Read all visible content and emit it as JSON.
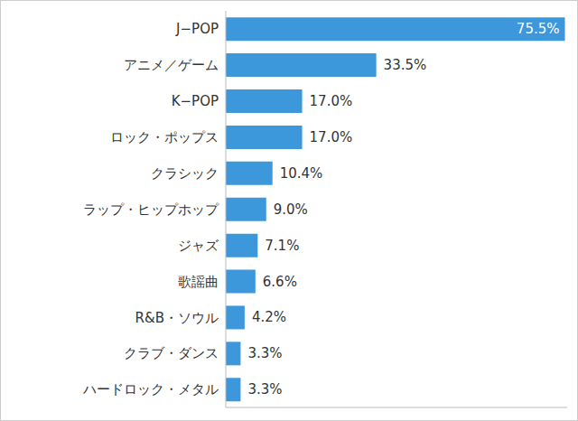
{
  "chart_data": {
    "type": "bar",
    "orientation": "horizontal",
    "categories": [
      "J−POP",
      "アニメ／ゲーム",
      "K−POP",
      "ロック・ポップス",
      "クラシック",
      "ラップ・ヒップホップ",
      "ジャズ",
      "歌謡曲",
      "R&B・ソウル",
      "クラブ・ダンス",
      "ハードロック・メタル"
    ],
    "values": [
      75.5,
      33.5,
      17.0,
      17.0,
      10.4,
      9.0,
      7.1,
      6.6,
      4.2,
      3.3,
      3.3
    ],
    "value_labels": [
      "75.5%",
      "33.5%",
      "17.0%",
      "17.0%",
      "10.4%",
      "9.0%",
      "7.1%",
      "6.6%",
      "4.2%",
      "3.3%",
      "3.3%"
    ],
    "color": "#3d97db",
    "xlim": [
      0,
      76
    ],
    "data_labels": true,
    "tick_labels": "y",
    "grid": false
  }
}
